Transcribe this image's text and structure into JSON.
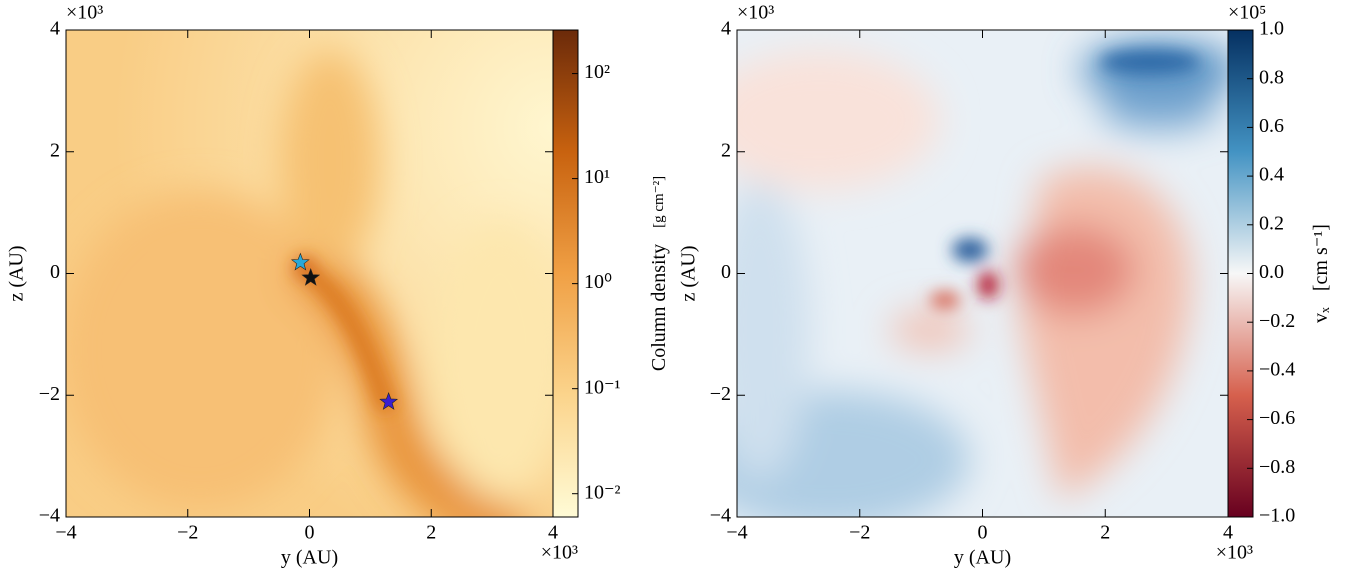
{
  "chart_data": [
    {
      "type": "scatter",
      "xlabel": "y  (AU)",
      "ylabel": "z  (AU)",
      "x_multiplier": "×10³",
      "y_multiplier": "×10³",
      "xlim": [
        -4,
        4
      ],
      "ylim": [
        -4,
        4
      ],
      "xticks": [
        {
          "value": -4,
          "label": "−4"
        },
        {
          "value": -2,
          "label": "−2"
        },
        0,
        2,
        4
      ],
      "yticks": [
        {
          "value": -4,
          "label": "−4"
        },
        {
          "value": -2,
          "label": "−2"
        },
        0,
        2,
        4
      ],
      "x": [
        -0.15,
        0.02,
        1.3
      ],
      "y": [
        0.18,
        -0.07,
        -2.11
      ],
      "colors": [
        "#2aa8d8",
        "#111111",
        "#3a1fd0"
      ],
      "colorbar": {
        "label": "Column density",
        "unit": "[g cm⁻²]",
        "scale": "log",
        "lim": [
          0.006,
          260
        ],
        "colors": [
          "#fffbd6",
          "#fbd48c",
          "#f0a045",
          "#c8620f",
          "#6b2a0a"
        ],
        "ticks": [
          {
            "value": 0.01,
            "label": "10⁻²"
          },
          {
            "value": 0.1,
            "label": "10⁻¹"
          },
          {
            "value": 1,
            "label": "10⁰"
          },
          {
            "value": 10,
            "label": "10¹"
          },
          {
            "value": 100,
            "label": "10²"
          }
        ]
      }
    },
    {
      "type": "heatmap",
      "xlabel": "y  (AU)",
      "ylabel": "z  (AU)",
      "x_multiplier": "×10³",
      "y_multiplier": "×10³",
      "xlim": [
        -4,
        4
      ],
      "ylim": [
        -4,
        4
      ],
      "xticks": [
        {
          "value": -4,
          "label": "−4"
        },
        {
          "value": -2,
          "label": "−2"
        },
        0,
        2,
        4
      ],
      "yticks": [
        {
          "value": -4,
          "label": "−4"
        },
        {
          "value": -2,
          "label": "−2"
        },
        0,
        2,
        4
      ],
      "colorbar": {
        "label": "vₓ",
        "unit": "[cm s⁻¹]",
        "multiplier": "×10⁵",
        "scale": "linear",
        "lim": [
          -1,
          1
        ],
        "colors": [
          "#67001f",
          "#d6604d",
          "#f7f7f7",
          "#4393c3",
          "#053061"
        ],
        "ticks": [
          {
            "value": -1,
            "label": "−1.0"
          },
          {
            "value": -0.8,
            "label": "−0.8"
          },
          {
            "value": -0.6,
            "label": "−0.6"
          },
          {
            "value": -0.4,
            "label": "−0.4"
          },
          {
            "value": -0.2,
            "label": "−0.2"
          },
          {
            "value": 0,
            "label": "0.0"
          },
          0.2,
          0.4,
          0.6,
          0.8,
          {
            "value": 1,
            "label": "1.0"
          }
        ]
      }
    }
  ]
}
